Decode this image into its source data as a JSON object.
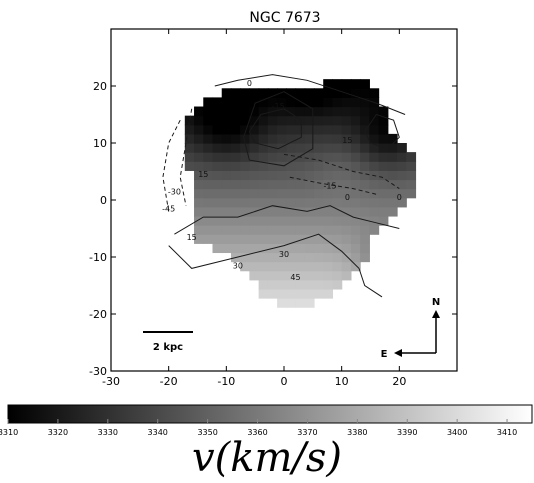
{
  "chart_data": {
    "type": "heatmap",
    "title": "NGC 7673",
    "xlim": [
      -30,
      30
    ],
    "ylim": [
      -30,
      30
    ],
    "x_ticks": [
      "-30",
      "-20",
      "-10",
      "0",
      "10",
      "20"
    ],
    "y_ticks": [
      "20",
      "10",
      "0",
      "-10",
      "-20",
      "-30"
    ],
    "grid": false,
    "scale_bar_label": "2 kpc",
    "compass": {
      "north": "N",
      "east": "E"
    },
    "contour_labels": [
      "-15",
      "-15",
      "0",
      "0",
      "15",
      "15",
      "15",
      "30",
      "30",
      "45",
      "-30",
      "-45",
      "0"
    ],
    "colorbar": {
      "range": [
        3310,
        3415
      ],
      "ticks": [
        "3310",
        "3320",
        "3330",
        "3340",
        "3350",
        "3360",
        "3370",
        "3380",
        "3390",
        "3400",
        "3410"
      ],
      "label": "v(km/s)",
      "colormap": [
        "#000000",
        "#ffffff"
      ]
    }
  }
}
